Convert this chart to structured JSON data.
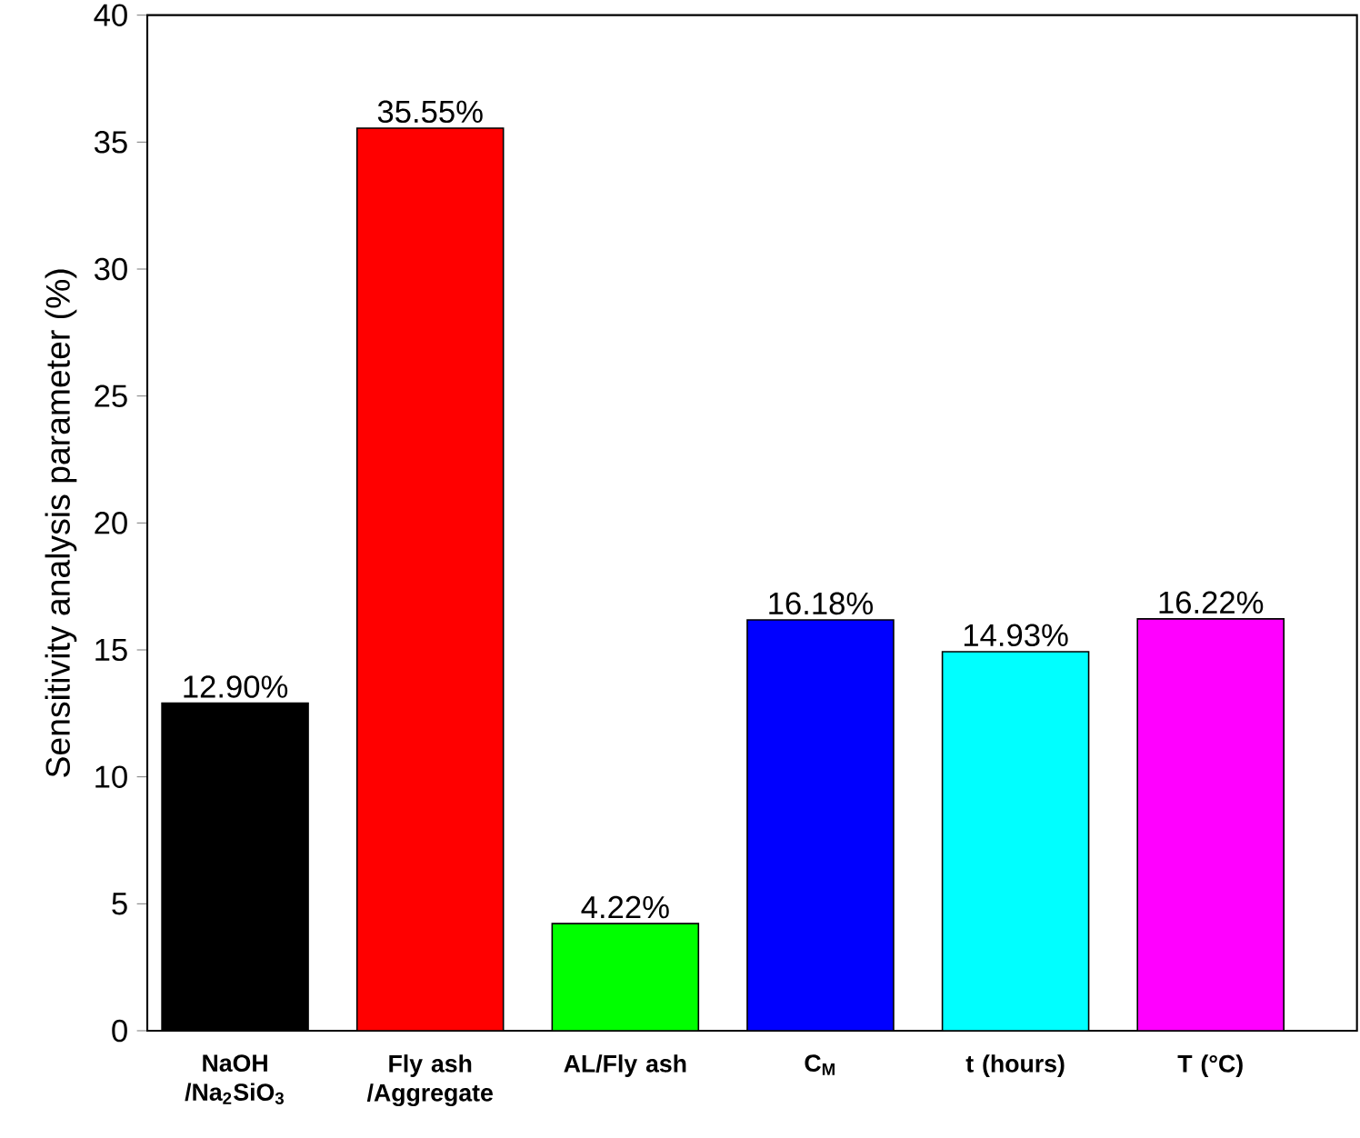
{
  "chart_data": {
    "type": "bar",
    "ylabel": "Sensitivity analysis parameter (%)",
    "categories": [
      "NaOH /Na$_{2}$SiO$_{3}$",
      "Fly ash /Aggregate",
      "AL/Fly ash",
      "C$_{M}$",
      "t (hours)",
      "T (°C)"
    ],
    "values": [
      12.9,
      35.55,
      4.22,
      16.18,
      14.93,
      16.22
    ],
    "colors": [
      "#000000",
      "#ff0000",
      "#00ff00",
      "#0000ff",
      "#00ffff",
      "#ff00ff"
    ],
    "value_labels": [
      "12.90%",
      "35.55%",
      "4.22%",
      "16.18%",
      "14.93%",
      "16.22%"
    ],
    "ylim": [
      0,
      40
    ],
    "yticks": [
      0,
      5,
      10,
      15,
      20,
      25,
      30,
      35,
      40
    ]
  }
}
